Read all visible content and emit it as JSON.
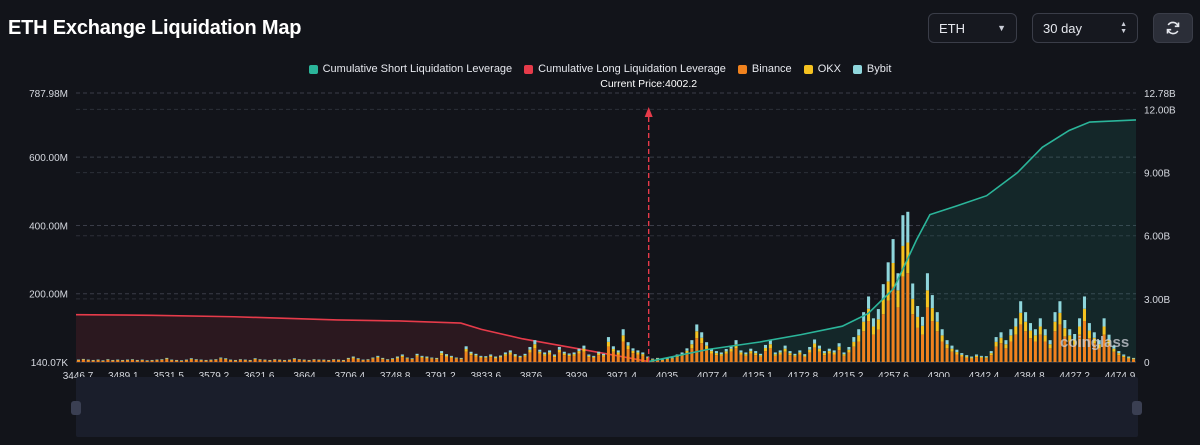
{
  "header": {
    "title": "ETH Exchange Liquidation Map",
    "coin_value": "ETH",
    "period_value": "30 day",
    "refresh_icon": "refresh-icon"
  },
  "watermark": "coinglass",
  "colors": {
    "short": "#2bb59a",
    "long": "#e63b4a",
    "binance": "#f0821e",
    "okx": "#f5c220",
    "bybit": "#8fd6dc",
    "background": "#12141a"
  },
  "chart_data": {
    "type": "bar",
    "title": "",
    "annotation": "Current Price:4002.2",
    "current_price": 4002.2,
    "legend": [
      "Cumulative Short Liquidation Leverage",
      "Cumulative Long Liquidation Leverage",
      "Binance",
      "OKX",
      "Bybit"
    ],
    "legend_placement": "top-center",
    "grid": true,
    "x_tick_labels": [
      "3446.7",
      "3489.1",
      "3531.5",
      "3579.2",
      "3621.6",
      "3664",
      "3706.4",
      "3748.8",
      "3791.2",
      "3833.6",
      "3876",
      "3929",
      "3971.4",
      "4035",
      "4077.4",
      "4125.1",
      "4172.8",
      "4215.2",
      "4257.6",
      "4300",
      "4342.4",
      "4384.8",
      "4427.2",
      "4474.9"
    ],
    "y_left_ticks": [
      "140.07K",
      "200.00M",
      "400.00M",
      "600.00M",
      "787.98M"
    ],
    "y_right_ticks": [
      "0",
      "3.00B",
      "6.00B",
      "9.00B",
      "12.00B",
      "12.78B"
    ],
    "y_left_range": [
      0,
      787980000
    ],
    "y_right_range": [
      0,
      12780000000
    ],
    "x_range": [
      3446.7,
      4474.9
    ],
    "bar_series": [
      {
        "name": "Binance",
        "values_m": [
          5,
          7,
          5,
          4,
          5,
          3,
          6,
          4,
          5,
          4,
          5,
          6,
          4,
          5,
          3,
          4,
          5,
          6,
          8,
          5,
          4,
          3,
          5,
          7,
          6,
          5,
          4,
          5,
          6,
          9,
          7,
          5,
          4,
          6,
          5,
          4,
          7,
          6,
          5,
          4,
          6,
          5,
          4,
          5,
          7,
          6,
          5,
          4,
          6,
          5,
          5,
          4,
          6,
          5,
          4,
          8,
          10,
          7,
          5,
          6,
          9,
          12,
          8,
          6,
          7,
          10,
          14,
          9,
          7,
          16,
          12,
          10,
          9,
          8,
          20,
          15,
          12,
          9,
          8,
          30,
          20,
          16,
          12,
          11,
          14,
          10,
          13,
          18,
          22,
          15,
          12,
          16,
          28,
          40,
          24,
          18,
          22,
          14,
          28,
          20,
          17,
          18,
          25,
          30,
          14,
          12,
          20,
          16,
          45,
          30,
          22,
          60,
          38,
          26,
          22,
          18,
          10,
          6,
          8,
          5,
          7,
          9,
          14,
          18,
          26,
          40,
          70,
          55,
          38,
          25,
          20,
          18,
          24,
          30,
          40,
          22,
          18,
          25,
          20,
          16,
          32,
          40,
          18,
          22,
          30,
          20,
          16,
          22,
          15,
          28,
          42,
          30,
          20,
          25,
          22,
          35,
          18,
          28,
          45,
          60,
          90,
          120,
          80,
          95,
          140,
          180,
          220,
          160,
          250,
          260,
          140,
          100,
          80,
          160,
          120,
          90,
          60,
          40,
          30,
          22,
          16,
          12,
          10,
          14,
          12,
          11,
          20,
          45,
          55,
          40,
          60,
          80,
          110,
          90,
          70,
          60,
          80,
          60,
          40,
          90,
          110,
          75,
          60,
          50,
          80,
          120,
          70,
          55,
          40,
          80,
          50,
          30,
          20,
          14,
          10,
          8
        ]
      },
      {
        "name": "OKX",
        "values_m": [
          1,
          1,
          1,
          1,
          1,
          1,
          1,
          1,
          1,
          1,
          1,
          1,
          1,
          1,
          1,
          1,
          1,
          1,
          2,
          1,
          1,
          1,
          1,
          2,
          1,
          1,
          1,
          1,
          1,
          2,
          2,
          1,
          1,
          1,
          1,
          1,
          2,
          1,
          1,
          1,
          1,
          1,
          1,
          1,
          2,
          1,
          1,
          1,
          1,
          1,
          1,
          1,
          1,
          1,
          1,
          2,
          3,
          2,
          1,
          1,
          2,
          3,
          2,
          1,
          2,
          3,
          4,
          2,
          2,
          4,
          3,
          3,
          2,
          2,
          6,
          4,
          3,
          2,
          2,
          8,
          5,
          4,
          3,
          3,
          4,
          3,
          3,
          5,
          6,
          4,
          3,
          4,
          8,
          12,
          6,
          5,
          6,
          4,
          8,
          5,
          4,
          5,
          7,
          9,
          4,
          3,
          5,
          4,
          14,
          8,
          6,
          18,
          10,
          7,
          6,
          5,
          3,
          2,
          2,
          1,
          2,
          2,
          4,
          5,
          7,
          12,
          20,
          16,
          10,
          7,
          6,
          5,
          7,
          9,
          12,
          6,
          5,
          7,
          6,
          4,
          9,
          12,
          5,
          6,
          9,
          6,
          4,
          6,
          4,
          8,
          12,
          9,
          6,
          7,
          6,
          10,
          5,
          8,
          14,
          18,
          28,
          36,
          24,
          30,
          44,
          56,
          70,
          50,
          90,
          90,
          45,
          32,
          26,
          50,
          38,
          28,
          18,
          12,
          9,
          7,
          5,
          4,
          3,
          4,
          3,
          3,
          6,
          14,
          16,
          12,
          18,
          24,
          34,
          28,
          22,
          18,
          24,
          18,
          12,
          28,
          34,
          24,
          18,
          16,
          24,
          36,
          22,
          16,
          12,
          24,
          15,
          9,
          6,
          4,
          3,
          2
        ]
      },
      {
        "name": "Bybit",
        "values_m": [
          1,
          1,
          1,
          1,
          1,
          1,
          1,
          1,
          1,
          1,
          1,
          1,
          1,
          1,
          1,
          1,
          1,
          1,
          2,
          1,
          1,
          1,
          1,
          2,
          1,
          1,
          1,
          1,
          1,
          2,
          2,
          1,
          1,
          1,
          1,
          1,
          2,
          1,
          1,
          1,
          1,
          1,
          1,
          1,
          2,
          1,
          1,
          1,
          1,
          1,
          1,
          1,
          1,
          1,
          1,
          2,
          3,
          2,
          1,
          1,
          2,
          3,
          2,
          1,
          2,
          3,
          4,
          2,
          2,
          4,
          3,
          3,
          2,
          2,
          6,
          4,
          3,
          2,
          2,
          8,
          5,
          4,
          3,
          3,
          4,
          3,
          3,
          5,
          6,
          4,
          3,
          4,
          8,
          12,
          6,
          5,
          6,
          4,
          8,
          5,
          4,
          5,
          7,
          9,
          4,
          3,
          5,
          4,
          14,
          8,
          6,
          18,
          10,
          7,
          6,
          5,
          3,
          2,
          2,
          1,
          2,
          2,
          4,
          5,
          7,
          12,
          20,
          16,
          10,
          7,
          6,
          5,
          7,
          9,
          12,
          6,
          5,
          7,
          6,
          4,
          9,
          12,
          5,
          6,
          9,
          6,
          4,
          6,
          4,
          8,
          12,
          9,
          6,
          7,
          6,
          10,
          5,
          8,
          14,
          18,
          28,
          36,
          24,
          30,
          44,
          56,
          70,
          50,
          90,
          90,
          45,
          32,
          26,
          50,
          38,
          28,
          18,
          12,
          9,
          7,
          5,
          4,
          3,
          4,
          3,
          3,
          6,
          14,
          16,
          12,
          18,
          24,
          34,
          28,
          22,
          18,
          24,
          18,
          12,
          28,
          34,
          24,
          18,
          16,
          24,
          36,
          22,
          16,
          12,
          24,
          15,
          9,
          6,
          4,
          3,
          2
        ]
      }
    ],
    "cumulative_long_b": [
      [
        3446.7,
        2.25
      ],
      [
        3520,
        2.22
      ],
      [
        3600,
        2.15
      ],
      [
        3700,
        2.0
      ],
      [
        3760,
        1.95
      ],
      [
        3820,
        1.85
      ],
      [
        3840,
        1.55
      ],
      [
        3880,
        1.1
      ],
      [
        3920,
        0.75
      ],
      [
        3960,
        0.4
      ],
      [
        4002.2,
        0.02
      ]
    ],
    "cumulative_short_b": [
      [
        4002.2,
        0.02
      ],
      [
        4060,
        0.6
      ],
      [
        4110,
        0.95
      ],
      [
        4150,
        1.3
      ],
      [
        4190,
        1.7
      ],
      [
        4215,
        2.3
      ],
      [
        4240,
        3.5
      ],
      [
        4262,
        5.8
      ],
      [
        4275,
        7.0
      ],
      [
        4300,
        7.4
      ],
      [
        4330,
        7.9
      ],
      [
        4360,
        9.0
      ],
      [
        4384,
        10.2
      ],
      [
        4410,
        11.0
      ],
      [
        4430,
        11.4
      ],
      [
        4474.9,
        11.5
      ]
    ]
  }
}
